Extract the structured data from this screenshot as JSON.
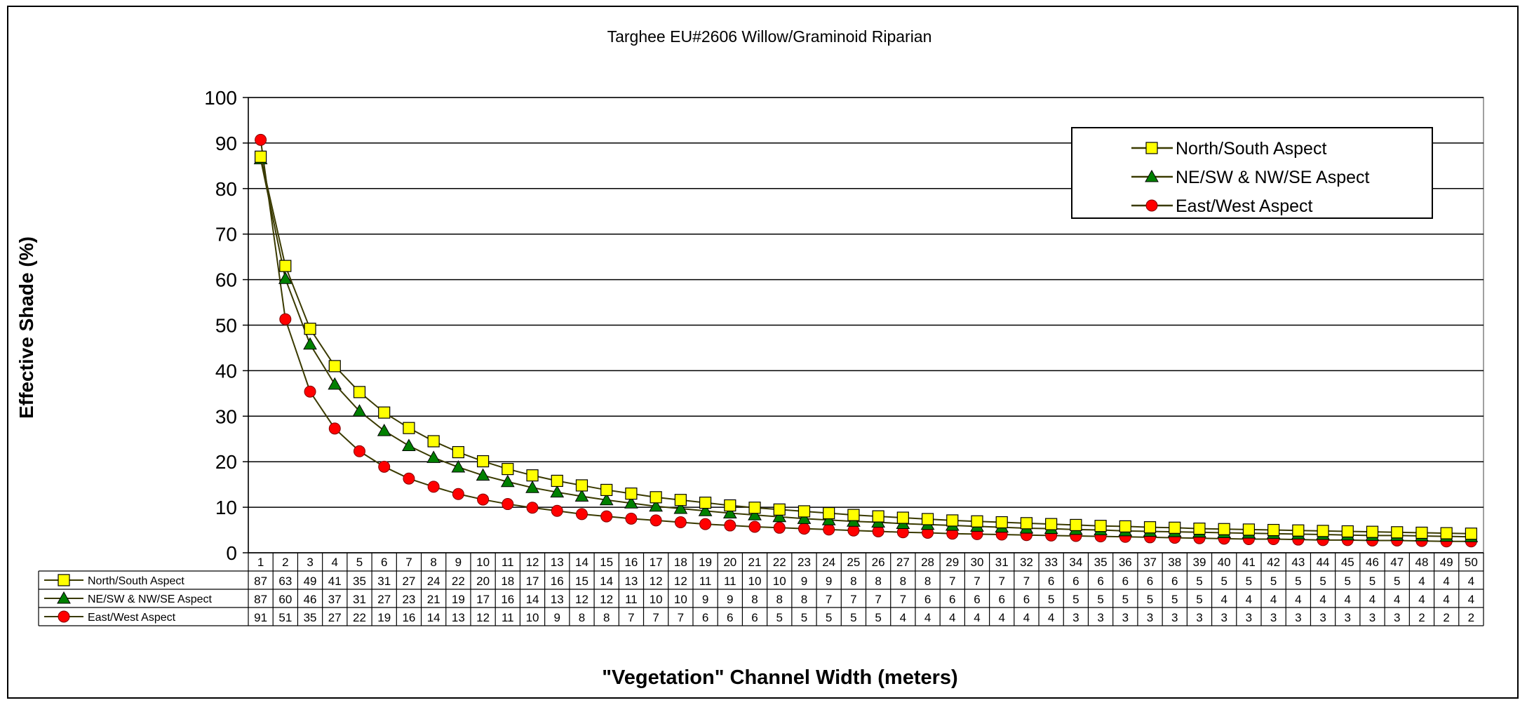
{
  "chart_data": {
    "type": "line",
    "title": "Targhee EU#2606 Willow/Graminoid Riparian",
    "xlabel": "\"Vegetation\" Channel Width (meters)",
    "ylabel": "Effective Shade (%)",
    "ylim": [
      0,
      100
    ],
    "yticks": [
      "0",
      "10",
      "20",
      "30",
      "40",
      "50",
      "60",
      "70",
      "80",
      "90",
      "100"
    ],
    "grid": true,
    "legend_position": "top-right",
    "x": [
      1,
      2,
      3,
      4,
      5,
      6,
      7,
      8,
      9,
      10,
      11,
      12,
      13,
      14,
      15,
      16,
      17,
      18,
      19,
      20,
      21,
      22,
      23,
      24,
      25,
      26,
      27,
      28,
      29,
      30,
      31,
      32,
      33,
      34,
      35,
      36,
      37,
      38,
      39,
      40,
      41,
      42,
      43,
      44,
      45,
      46,
      47,
      48,
      49,
      50
    ],
    "series": [
      {
        "name": "North/South Aspect",
        "marker": "square",
        "color": "#ffff00",
        "values": [
          87,
          63,
          49,
          41,
          35,
          31,
          27,
          24,
          22,
          20,
          18,
          17,
          16,
          15,
          14,
          13,
          12,
          12,
          11,
          11,
          10,
          10,
          9,
          9,
          8,
          8,
          8,
          8,
          7,
          7,
          7,
          7,
          6,
          6,
          6,
          6,
          6,
          6,
          5,
          5,
          5,
          5,
          5,
          5,
          5,
          5,
          5,
          4,
          4,
          4
        ],
        "plot_values": [
          87,
          63,
          49.2,
          41,
          35.3,
          30.8,
          27.4,
          24.5,
          22.1,
          20.1,
          18.4,
          17,
          15.8,
          14.8,
          13.8,
          13,
          12.2,
          11.6,
          11,
          10.4,
          9.9,
          9.5,
          9.1,
          8.7,
          8.3,
          8,
          7.7,
          7.4,
          7.1,
          6.9,
          6.7,
          6.5,
          6.3,
          6.1,
          5.9,
          5.8,
          5.6,
          5.5,
          5.3,
          5.2,
          5.1,
          5,
          4.9,
          4.8,
          4.7,
          4.6,
          4.5,
          4.4,
          4.3,
          4.2
        ]
      },
      {
        "name": "NE/SW & NW/SE Aspect",
        "marker": "triangle",
        "color": "#008000",
        "values": [
          87,
          60,
          46,
          37,
          31,
          27,
          23,
          21,
          19,
          17,
          16,
          14,
          13,
          12,
          12,
          11,
          10,
          10,
          9,
          9,
          8,
          8,
          8,
          7,
          7,
          7,
          7,
          6,
          6,
          6,
          6,
          6,
          5,
          5,
          5,
          5,
          5,
          5,
          5,
          4,
          4,
          4,
          4,
          4,
          4,
          4,
          4,
          4,
          4,
          4
        ],
        "plot_values": [
          86.5,
          60.2,
          45.8,
          37,
          31.1,
          26.8,
          23.5,
          20.9,
          18.8,
          17,
          15.6,
          14.3,
          13.3,
          12.4,
          11.6,
          10.9,
          10.2,
          9.7,
          9.2,
          8.7,
          8.3,
          7.9,
          7.5,
          7.2,
          6.9,
          6.7,
          6.4,
          6.2,
          6,
          5.8,
          5.6,
          5.4,
          5.3,
          5.1,
          5,
          4.8,
          4.7,
          4.6,
          4.5,
          4.4,
          4.3,
          4.2,
          4.1,
          4,
          3.9,
          3.8,
          3.8,
          3.7,
          3.6,
          3.5
        ]
      },
      {
        "name": "East/West Aspect",
        "marker": "circle",
        "color": "#ff0000",
        "values": [
          91,
          51,
          35,
          27,
          22,
          19,
          16,
          14,
          13,
          12,
          11,
          10,
          9,
          8,
          8,
          7,
          7,
          7,
          6,
          6,
          6,
          5,
          5,
          5,
          5,
          5,
          4,
          4,
          4,
          4,
          4,
          4,
          4,
          3,
          3,
          3,
          3,
          3,
          3,
          3,
          3,
          3,
          3,
          3,
          3,
          3,
          3,
          2,
          2,
          2
        ],
        "plot_values": [
          90.7,
          51.3,
          35.4,
          27.3,
          22.3,
          18.9,
          16.3,
          14.5,
          12.9,
          11.7,
          10.7,
          9.9,
          9.2,
          8.5,
          8,
          7.5,
          7.1,
          6.7,
          6.3,
          6,
          5.7,
          5.5,
          5.3,
          5.1,
          4.9,
          4.7,
          4.5,
          4.4,
          4.2,
          4.1,
          4,
          3.9,
          3.8,
          3.7,
          3.6,
          3.5,
          3.4,
          3.3,
          3.2,
          3.1,
          3,
          3,
          2.9,
          2.8,
          2.8,
          2.7,
          2.7,
          2.6,
          2.5,
          2.5
        ]
      }
    ]
  }
}
